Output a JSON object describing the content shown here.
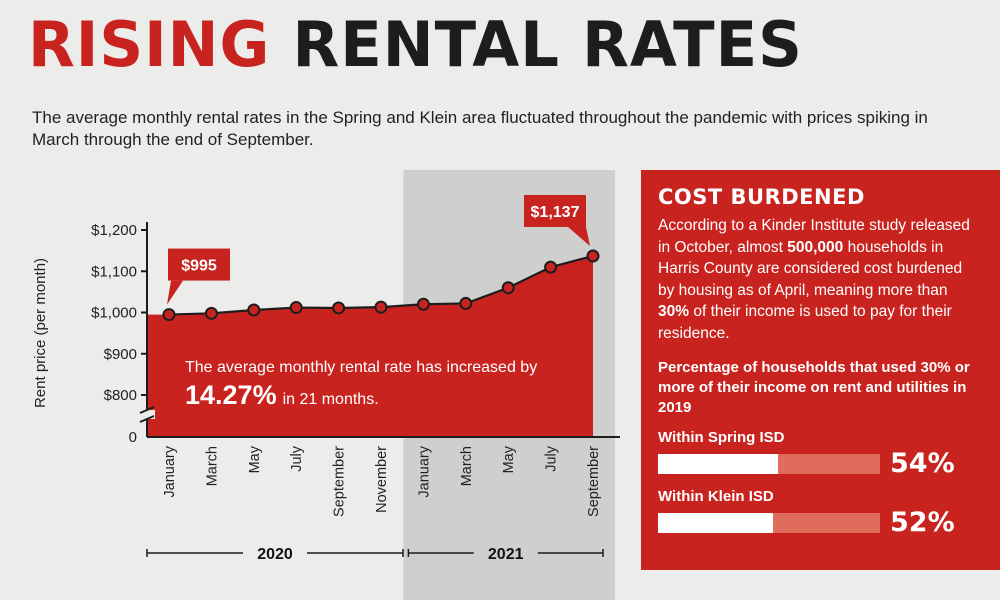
{
  "title": {
    "part1": "RISING",
    "part2": "RENTAL RATES"
  },
  "subtitle": "The average monthly rental rates in the Spring and Klein area fluctuated throughout the pandemic with prices spiking in March through the end of September.",
  "colors": {
    "accent": "#c8231f",
    "dark": "#1d1d1d",
    "highlight": "#cfcfcd",
    "bar_track": "#e06d5c"
  },
  "chart_data": {
    "type": "area",
    "ylabel": "Rent price (per month)",
    "categories": [
      "January",
      "March",
      "May",
      "July",
      "September",
      "November",
      "January",
      "March",
      "May",
      "July",
      "September"
    ],
    "values": [
      995,
      998,
      1006,
      1012,
      1011,
      1013,
      1020,
      1022,
      1060,
      1110,
      1137
    ],
    "yticks": [
      {
        "value": 1200,
        "label": "$1,200"
      },
      {
        "value": 1100,
        "label": "$1,100"
      },
      {
        "value": 1000,
        "label": "$1,000"
      },
      {
        "value": 900,
        "label": "$900"
      },
      {
        "value": 800,
        "label": "$800"
      }
    ],
    "zero_label": "0",
    "axis_break": true,
    "ylim": [
      750,
      1200
    ],
    "highlight_range": [
      6,
      10
    ],
    "groups": [
      {
        "label": "2020",
        "start": 0,
        "end": 5
      },
      {
        "label": "2021",
        "start": 6,
        "end": 10
      }
    ],
    "callouts": [
      {
        "index": 0,
        "label": "$995"
      },
      {
        "index": 10,
        "label": "$1,137"
      }
    ],
    "annotation": {
      "line1": "The average monthly rental rate has increased by",
      "big": "14.27%",
      "small": "in 21 months."
    }
  },
  "panel": {
    "heading": "COST BURDENED",
    "body": [
      {
        "text": "According to a Kinder Institute study released in October, almost ",
        "bold": false
      },
      {
        "text": "500,000",
        "bold": true
      },
      {
        "text": " households in Harris County are considered cost burdened by housing as of April, meaning more than ",
        "bold": false
      },
      {
        "text": "30%",
        "bold": true
      },
      {
        "text": " of their income is used to pay for their residence.",
        "bold": false
      }
    ],
    "subheading": "Percentage of households that used 30% or more of their income on rent and utilities in 2019",
    "metrics": [
      {
        "label": "Within Spring ISD",
        "value": 54,
        "display": "54%"
      },
      {
        "label": "Within Klein ISD",
        "value": 52,
        "display": "52%"
      }
    ]
  }
}
